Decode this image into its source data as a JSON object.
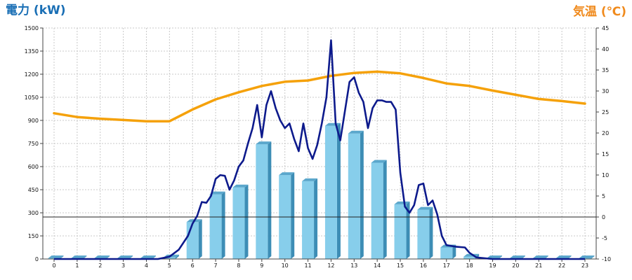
{
  "chart_data": {
    "type": "bar",
    "title_left": "電力 (kW)",
    "title_right": "気温 (℃)",
    "x": [
      "0",
      "1",
      "2",
      "3",
      "4",
      "5",
      "6",
      "7",
      "8",
      "9",
      "10",
      "11",
      "12",
      "13",
      "14",
      "15",
      "16",
      "17",
      "18",
      "19",
      "20",
      "21",
      "22",
      "23"
    ],
    "y_left_ticks": [
      "0",
      "150",
      "300",
      "450",
      "600",
      "750",
      "900",
      "1050",
      "1200",
      "1350",
      "1500"
    ],
    "y_right_ticks": [
      "-10",
      "-5",
      "0",
      "5",
      "10",
      "15",
      "20",
      "25",
      "30",
      "35",
      "40",
      "45"
    ],
    "ylim_left": [
      0,
      1500
    ],
    "ylim_right": [
      -10,
      45
    ],
    "grid": true,
    "series": [
      {
        "kind": "bar",
        "axis": "left",
        "color": "#87ceeb",
        "values": [
          0,
          0,
          0,
          0,
          0,
          10,
          240,
          420,
          465,
          745,
          545,
          505,
          865,
          815,
          625,
          355,
          320,
          75,
          15,
          0,
          0,
          0,
          0,
          0
        ]
      },
      {
        "kind": "line",
        "axis": "left",
        "color": "#0d1a8c",
        "x": [
          0,
          1,
          2,
          3,
          4,
          4.5,
          5,
          5.4,
          5.8,
          6,
          6.2,
          6.4,
          6.6,
          6.8,
          7,
          7.2,
          7.4,
          7.6,
          7.8,
          8,
          8.2,
          8.4,
          8.6,
          8.8,
          9,
          9.2,
          9.4,
          9.6,
          9.8,
          10,
          10.2,
          10.4,
          10.6,
          10.8,
          11,
          11.2,
          11.4,
          11.6,
          11.8,
          12,
          12.2,
          12.4,
          12.6,
          12.8,
          13,
          13.2,
          13.4,
          13.6,
          13.8,
          14,
          14.2,
          14.4,
          14.6,
          14.8,
          15,
          15.2,
          15.4,
          15.6,
          15.8,
          16,
          16.2,
          16.4,
          16.6,
          16.8,
          17,
          17.4,
          17.8,
          18,
          18.3,
          19,
          20,
          21,
          22,
          23
        ],
        "values": [
          0,
          0,
          0,
          0,
          0,
          0,
          15,
          60,
          150,
          230,
          280,
          370,
          365,
          410,
          520,
          545,
          540,
          450,
          510,
          600,
          640,
          750,
          850,
          1000,
          790,
          1000,
          1090,
          980,
          900,
          850,
          880,
          780,
          700,
          880,
          720,
          650,
          740,
          880,
          1050,
          1420,
          880,
          770,
          960,
          1150,
          1180,
          1080,
          1020,
          850,
          980,
          1030,
          1030,
          1020,
          1020,
          970,
          560,
          340,
          300,
          350,
          480,
          490,
          350,
          380,
          290,
          150,
          90,
          80,
          75,
          40,
          10,
          0,
          0,
          0,
          0,
          0
        ]
      },
      {
        "kind": "line",
        "axis": "right",
        "color": "#f5a10a",
        "values": [
          24.7,
          23.8,
          23.4,
          23.1,
          22.8,
          22.8,
          25.6,
          28.0,
          29.7,
          31.2,
          32.2,
          32.5,
          33.6,
          34.3,
          34.6,
          34.2,
          33.1,
          31.8,
          31.2,
          30.1,
          29.1,
          28.1,
          27.6,
          27.0
        ]
      }
    ]
  }
}
